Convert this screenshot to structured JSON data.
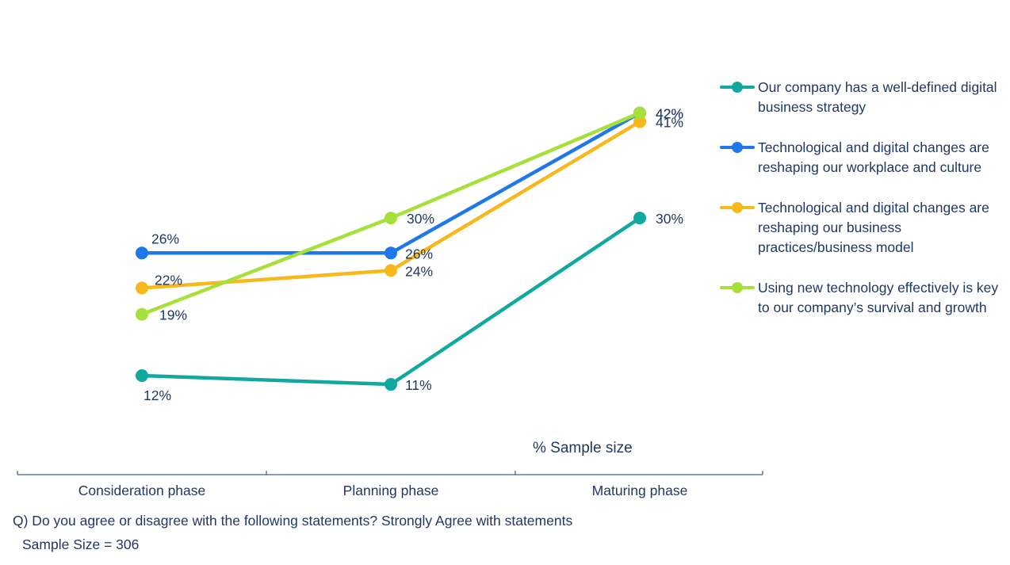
{
  "chart_data": {
    "type": "line",
    "categories": [
      "Consideration phase",
      "Planning phase",
      "Maturing phase"
    ],
    "series": [
      {
        "name": "Our company has a well-defined digital business strategy",
        "values": [
          12,
          11,
          30
        ],
        "labels": [
          "12%",
          "11%",
          "30%"
        ],
        "color": "#13a89e"
      },
      {
        "name": "Technological and digital changes are reshaping our workplace and culture",
        "values": [
          26,
          26,
          42
        ],
        "labels": [
          "26%",
          "26%",
          "42%"
        ],
        "color": "#1f77e8"
      },
      {
        "name": "Technological and digital changes are reshaping our business practices/business model",
        "values": [
          22,
          24,
          41
        ],
        "labels": [
          "22%",
          "24%",
          "41%"
        ],
        "color": "#f6b81c"
      },
      {
        "name": "Using new technology effectively is key to our company’s survival and growth",
        "values": [
          19,
          30,
          42
        ],
        "labels": [
          "19%",
          "30%",
          "42%"
        ],
        "color": "#a6e03a"
      }
    ],
    "xlabel": "% Sample size",
    "ylabel": "",
    "grid": false,
    "legend": "right"
  },
  "footer": {
    "question": "Q) Do you agree or disagree with the following statements? Strongly Agree with statements",
    "sample_size": "Sample Size = 306"
  }
}
